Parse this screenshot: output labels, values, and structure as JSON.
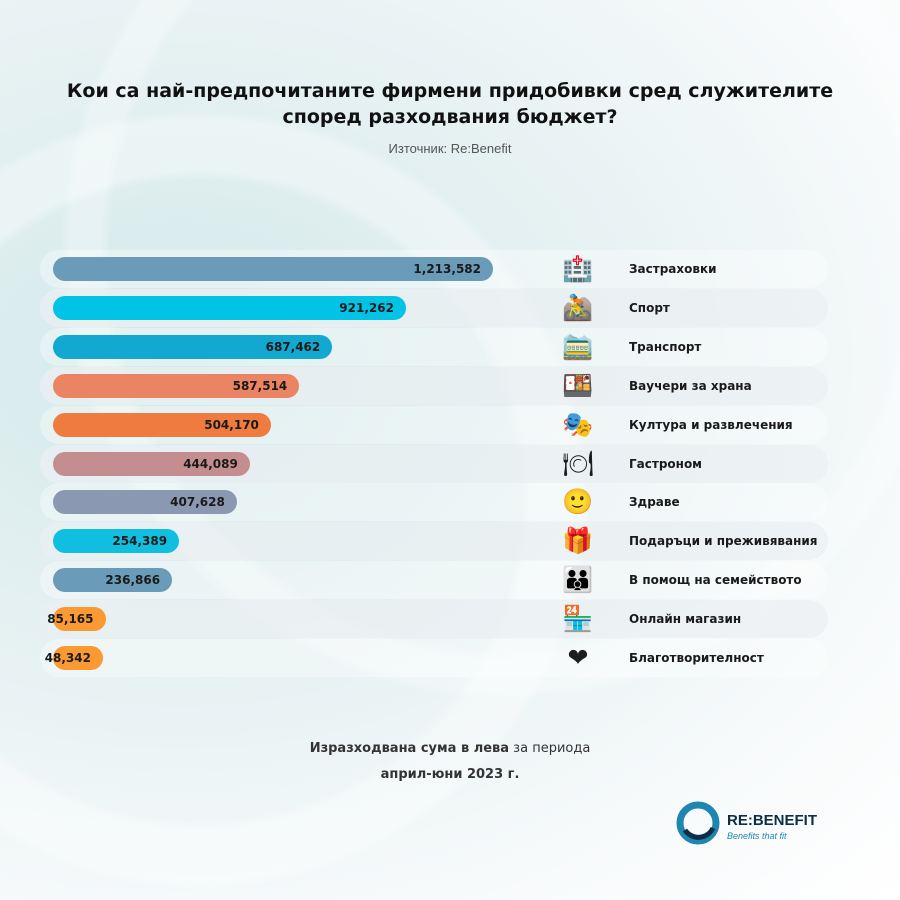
{
  "title": "Кои са най-предпочитаните фирмени придобивки сред служителите според разходвания бюджет?",
  "source": "Източник: Re:Benefit",
  "footer": {
    "line1_bold": "Изразходвана сума в лева",
    "line1_rest": " за периода",
    "line2": "април-юни 2023 г."
  },
  "logo": {
    "name": "RE:BENEFIT",
    "tagline": "Benefits that fit",
    "colors": [
      "#1e86b0",
      "#0c2f47"
    ]
  },
  "chart_data": {
    "type": "bar",
    "orientation": "horizontal",
    "title": "Кои са най-предпочитаните фирмени придобивки сред служителите според разходвания бюджет?",
    "categories": [
      "Застраховки",
      "Спорт",
      "Транспорт",
      "Ваучери за храна",
      "Култура и развлечения",
      "Гастроном",
      "Здраве",
      "Подаръци и преживявания",
      "В помощ на семейството",
      "Онлайн магазин",
      "Благотворителност"
    ],
    "values": [
      1213582,
      921262,
      687462,
      587514,
      504170,
      444089,
      407628,
      254389,
      236866,
      85165,
      48342
    ],
    "value_labels": [
      "1,213,582",
      "921,262",
      "687,462",
      "587,514",
      "504,170",
      "444,089",
      "407,628",
      "254,389",
      "236,866",
      "85,165",
      "48,342"
    ],
    "colors": [
      "#6a9bb8",
      "#00c3e6",
      "#12a8d0",
      "#ea8462",
      "#f07b3f",
      "#c48e90",
      "#8a98b2",
      "#10bfe0",
      "#6a9bb8",
      "#fb9a33",
      "#fb9a33"
    ],
    "icons": [
      {
        "name": "hospital-icon",
        "glyph": "🏥"
      },
      {
        "name": "mountain-biker-icon",
        "glyph": "🚵"
      },
      {
        "name": "mountain-railway-icon",
        "glyph": "🚞"
      },
      {
        "name": "bento-box-icon",
        "glyph": "🍱"
      },
      {
        "name": "theater-masks-icon",
        "glyph": "🎭"
      },
      {
        "name": "fork-knife-plate-icon",
        "glyph": "🍽"
      },
      {
        "name": "smiling-face-icon",
        "glyph": "🙂"
      },
      {
        "name": "gift-icon",
        "glyph": "🎁"
      },
      {
        "name": "family-icon",
        "glyph": "👪"
      },
      {
        "name": "shop-icon",
        "glyph": "🏪"
      },
      {
        "name": "heart-icon",
        "glyph": "❤"
      }
    ],
    "grid": false,
    "legend": "none"
  }
}
